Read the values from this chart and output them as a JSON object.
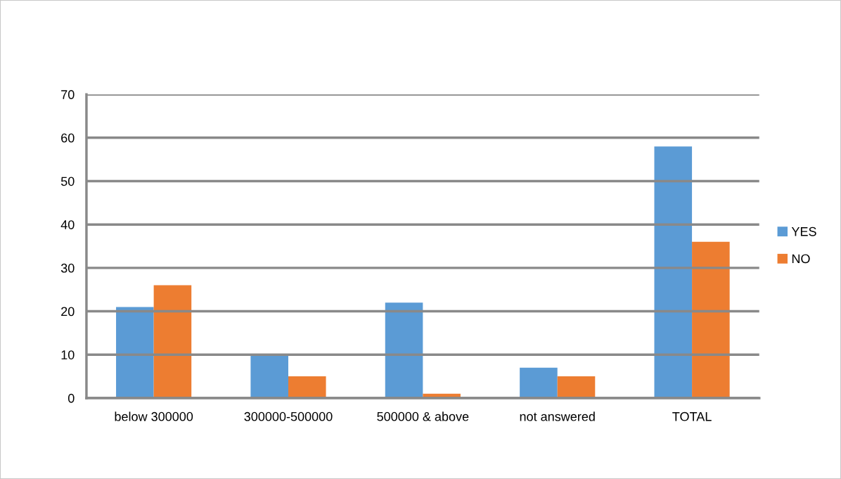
{
  "chart_data": {
    "type": "bar",
    "categories": [
      "below 300000",
      "300000-500000",
      "500000 & above",
      "not answered",
      "TOTAL"
    ],
    "series": [
      {
        "name": "YES",
        "color": "#5b9bd5",
        "values": [
          21,
          10,
          22,
          7,
          58
        ]
      },
      {
        "name": "NO",
        "color": "#ed7d31",
        "values": [
          26,
          5,
          1,
          5,
          36
        ]
      }
    ],
    "ylim": [
      0,
      70
    ],
    "yticks": [
      0,
      10,
      20,
      30,
      40,
      50,
      60,
      70
    ],
    "grid": "y",
    "legend": "right"
  }
}
